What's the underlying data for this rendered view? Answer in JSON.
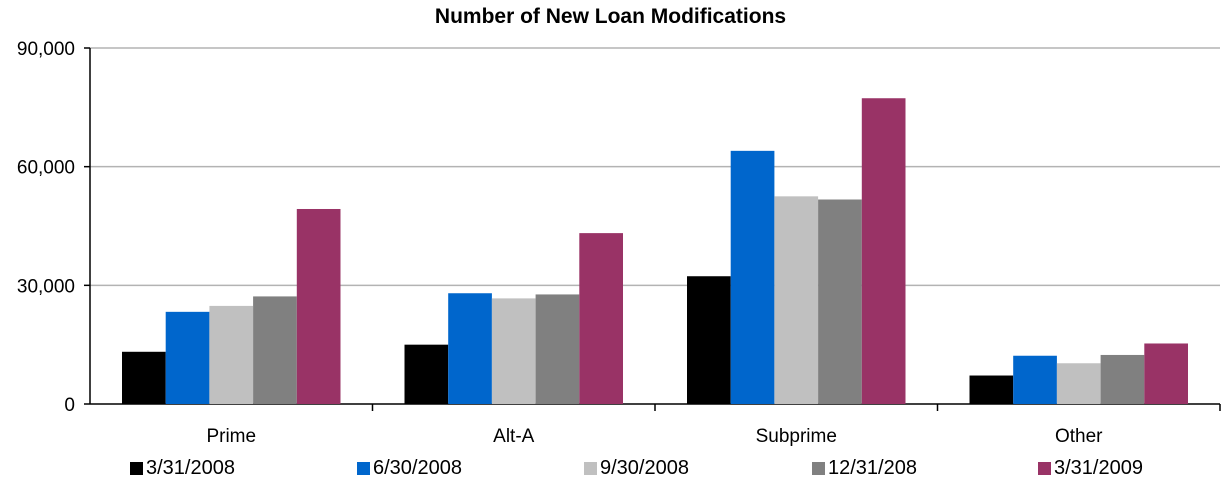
{
  "chart_data": {
    "type": "bar",
    "title": "Number of New Loan Modifications",
    "xlabel": "",
    "ylabel": "",
    "ylim": [
      0,
      90000
    ],
    "yticks": [
      0,
      30000,
      60000,
      90000
    ],
    "ytick_labels": [
      "0",
      "30,000",
      "60,000",
      "90,000"
    ],
    "grid": true,
    "legend_position": "bottom",
    "categories": [
      "Prime",
      "Alt-A",
      "Subprime",
      "Other"
    ],
    "series": [
      {
        "name": "3/31/2008",
        "color": "#000000",
        "values": [
          13200,
          15000,
          32300,
          7200
        ]
      },
      {
        "name": "6/30/2008",
        "color": "#0066cc",
        "values": [
          23300,
          28000,
          64000,
          12200
        ]
      },
      {
        "name": "9/30/2008",
        "color": "#c0c0c0",
        "values": [
          24800,
          26700,
          52500,
          10300
        ]
      },
      {
        "name": "12/31/208",
        "color": "#808080",
        "values": [
          27200,
          27700,
          51700,
          12400
        ]
      },
      {
        "name": "3/31/2009",
        "color": "#993366",
        "values": [
          49300,
          43200,
          77300,
          15300
        ]
      }
    ]
  }
}
